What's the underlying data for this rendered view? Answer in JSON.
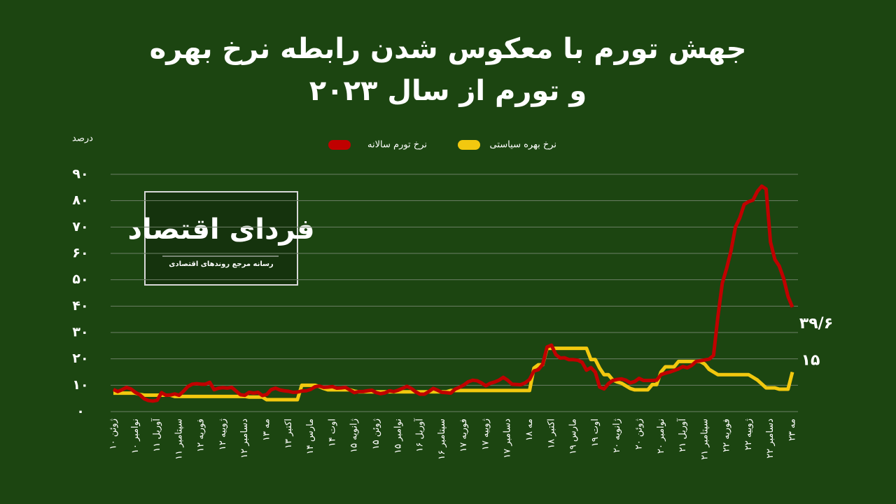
{
  "chart_data": {
    "type": "line",
    "title": "جهش تورم با معکوس شدن رابطه نرخ بهره و تورم از سال ۲۰۲۳",
    "y_label": "درصد",
    "categories": [
      "۱۰ ژوئن",
      null,
      null,
      null,
      null,
      "۱۰ نوامبر",
      null,
      null,
      null,
      null,
      "۱۱ آوریل",
      null,
      null,
      null,
      null,
      "۱۱ سپتامبر",
      null,
      null,
      null,
      null,
      "۱۲ فوریه",
      null,
      null,
      null,
      null,
      "۱۲ ژوییه",
      null,
      null,
      null,
      null,
      "۱۲ دسامبر",
      null,
      null,
      null,
      null,
      "۱۳ مه",
      null,
      null,
      null,
      null,
      "۱۳ اکتبر",
      null,
      null,
      null,
      null,
      "۱۴ مارس",
      null,
      null,
      null,
      null,
      "۱۴ اوت",
      null,
      null,
      null,
      null,
      "۱۵ ژانویه",
      null,
      null,
      null,
      null,
      "۱۵ ژوئن",
      null,
      null,
      null,
      null,
      "۱۵ نوامبر",
      null,
      null,
      null,
      null,
      "۱۶ آوریل",
      null,
      null,
      null,
      null,
      "۱۶ سپتامبر",
      null,
      null,
      null,
      null,
      "۱۷ فوریه",
      null,
      null,
      null,
      null,
      "۱۷ ژوییه",
      null,
      null,
      null,
      null,
      "۱۷ دسامبر",
      null,
      null,
      null,
      null,
      "۱۸ مه",
      null,
      null,
      null,
      null,
      "۱۸ اکتبر",
      null,
      null,
      null,
      null,
      "۱۹ مارس",
      null,
      null,
      null,
      null,
      "۱۹ اوت",
      null,
      null,
      null,
      null,
      "۲۰ ژانویه",
      null,
      null,
      null,
      null,
      "۲۰ ژوئن",
      null,
      null,
      null,
      null,
      "۲۰ نوامبر",
      null,
      null,
      null,
      null,
      "۲۱ آوریل",
      null,
      null,
      null,
      null,
      "۲۱ سپتامبر",
      null,
      null,
      null,
      null,
      "۲۲ فوریه",
      null,
      null,
      null,
      null,
      "۲۲ ژوییه",
      null,
      null,
      null,
      null,
      "۲۲ دسامبر",
      null,
      null,
      null,
      null,
      "۲۳ مه"
    ],
    "series": [
      {
        "name": "نرخ تورم سالانه",
        "color": "#c00000",
        "end_label": "۳۹/۶",
        "values": [
          8.4,
          7.6,
          8.3,
          9.2,
          8.6,
          7.3,
          6.4,
          4.9,
          4.2,
          4.0,
          4.3,
          7.2,
          6.2,
          6.3,
          6.7,
          6.2,
          7.7,
          9.5,
          10.4,
          10.6,
          10.4,
          10.4,
          11.1,
          8.3,
          8.9,
          9.1,
          8.9,
          9.2,
          7.8,
          6.4,
          6.2,
          7.3,
          7.0,
          7.3,
          6.1,
          6.5,
          8.3,
          8.9,
          8.2,
          7.9,
          7.7,
          7.3,
          7.4,
          7.8,
          7.9,
          8.4,
          9.4,
          9.7,
          9.2,
          9.3,
          9.5,
          8.9,
          9.0,
          9.2,
          8.2,
          7.2,
          7.6,
          7.6,
          7.9,
          8.1,
          7.2,
          6.8,
          7.1,
          7.9,
          7.6,
          8.1,
          8.8,
          9.6,
          8.8,
          7.5,
          6.6,
          6.6,
          7.6,
          8.8,
          8.1,
          7.3,
          7.2,
          7.0,
          8.5,
          9.2,
          10.1,
          11.3,
          11.9,
          11.7,
          10.9,
          9.8,
          10.7,
          11.2,
          11.9,
          13.0,
          11.9,
          10.4,
          10.3,
          10.2,
          10.9,
          12.2,
          15.4,
          15.9,
          17.9,
          24.5,
          25.2,
          21.6,
          20.3,
          20.4,
          19.7,
          19.7,
          19.5,
          18.7,
          15.7,
          16.7,
          15.0,
          9.3,
          8.6,
          10.6,
          11.8,
          12.2,
          12.4,
          11.9,
          10.9,
          11.4,
          12.6,
          11.8,
          11.8,
          11.8,
          11.9,
          14.0,
          14.6,
          15.0,
          15.6,
          16.2,
          17.1,
          16.6,
          17.5,
          19.0,
          19.3,
          19.6,
          19.9,
          21.3,
          36.1,
          48.7,
          54.4,
          61.1,
          70.0,
          73.5,
          78.6,
          79.6,
          80.2,
          83.5,
          85.5,
          84.4,
          64.3,
          57.7,
          55.2,
          50.5,
          43.7,
          39.6
        ]
      },
      {
        "name": "نرخ بهره سیاستی",
        "color": "#f2c80f",
        "end_label": "۱۵",
        "values": [
          7,
          7,
          7,
          7,
          7,
          7,
          6.5,
          6.25,
          6.25,
          6.25,
          6.25,
          6.25,
          6.25,
          6.25,
          5.75,
          5.75,
          5.75,
          5.75,
          5.75,
          5.75,
          5.75,
          5.75,
          5.75,
          5.75,
          5.75,
          5.75,
          5.75,
          5.75,
          5.75,
          5.75,
          5.75,
          5.5,
          5.5,
          5.5,
          5.5,
          4.5,
          4.5,
          4.5,
          4.5,
          4.5,
          4.5,
          4.5,
          4.5,
          10,
          10,
          10,
          10,
          9.5,
          8.75,
          8.25,
          8.25,
          8.25,
          8.25,
          8.25,
          8.25,
          7.75,
          7.5,
          7.5,
          7.5,
          7.5,
          7.5,
          7.5,
          7.5,
          7.5,
          7.5,
          7.5,
          7.5,
          7.5,
          7.5,
          7.5,
          7.5,
          7.5,
          7.5,
          7.5,
          7.5,
          7.5,
          7.5,
          8,
          8,
          8,
          8,
          8,
          8,
          8,
          8,
          8,
          8,
          8,
          8,
          8,
          8,
          8,
          8,
          8,
          8,
          8,
          16.5,
          17.75,
          17.75,
          24,
          24,
          24,
          24,
          24,
          24,
          24,
          24,
          24,
          24,
          19.75,
          19.75,
          16.5,
          14,
          14,
          12,
          11.25,
          10.75,
          9.75,
          8.75,
          8.25,
          8.25,
          8.25,
          8.25,
          10.25,
          10.25,
          15,
          17,
          17,
          17,
          19,
          19,
          19,
          19,
          19,
          19,
          18,
          16,
          15,
          14,
          14,
          14,
          14,
          14,
          14,
          14,
          14,
          13,
          12,
          10.5,
          9,
          9,
          9,
          8.5,
          8.5,
          8.5,
          15
        ]
      }
    ],
    "ylim": [
      0,
      90
    ],
    "yticks": [
      {
        "value": 0,
        "label": "۰"
      },
      {
        "value": 10,
        "label": "۱۰"
      },
      {
        "value": 20,
        "label": "۲۰"
      },
      {
        "value": 30,
        "label": "۳۰"
      },
      {
        "value": 40,
        "label": "۴۰"
      },
      {
        "value": 50,
        "label": "۵۰"
      },
      {
        "value": 60,
        "label": "۶۰"
      },
      {
        "value": 70,
        "label": "۷۰"
      },
      {
        "value": 80,
        "label": "۸۰"
      },
      {
        "value": 90,
        "label": "۹۰"
      }
    ],
    "grid": true
  },
  "logo": {
    "name": "فردای اقتصاد",
    "tagline": "رسانه مرجع روندهای اقتصادی"
  }
}
